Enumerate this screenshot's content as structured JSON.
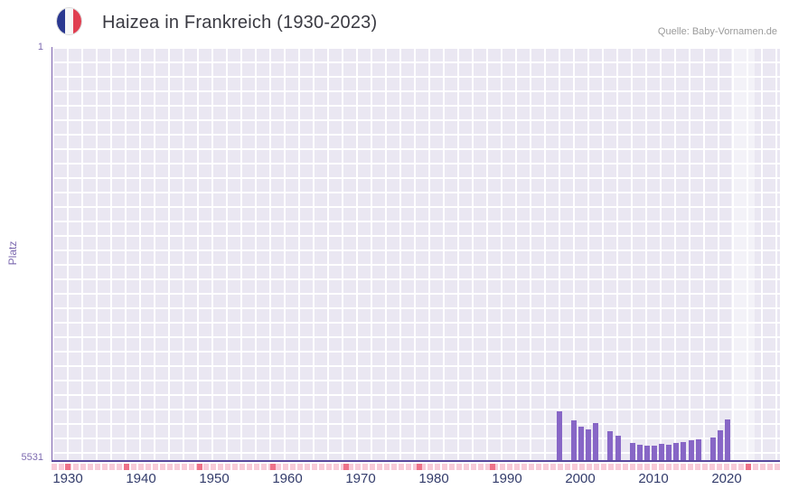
{
  "header": {
    "title": "Haizea in Frankreich (1930-2023)",
    "source": "Quelle: Baby-Vornamen.de",
    "flag_icon": "french-flag-icon"
  },
  "chart_data": {
    "type": "bar",
    "title": "Haizea in Frankreich (1930-2023)",
    "xlabel": "",
    "ylabel": "Platz",
    "x_range": [
      1930,
      2023
    ],
    "x_ticks": [
      1930,
      1940,
      1950,
      1960,
      1970,
      1980,
      1990,
      2000,
      2010,
      2020
    ],
    "y_axis": {
      "min": 1,
      "max": 5531,
      "inverted": true,
      "top_label": "1",
      "bottom_label": "5531"
    },
    "grid": true,
    "legend": "none",
    "highlight_band": {
      "from": 2021,
      "to": 2023
    },
    "bars": [
      {
        "year": 1997,
        "rank": 4870
      },
      {
        "year": 1999,
        "rank": 4990
      },
      {
        "year": 2000,
        "rank": 5070
      },
      {
        "year": 2001,
        "rank": 5110
      },
      {
        "year": 2002,
        "rank": 5020
      },
      {
        "year": 2004,
        "rank": 5130
      },
      {
        "year": 2005,
        "rank": 5190
      },
      {
        "year": 2007,
        "rank": 5290
      },
      {
        "year": 2008,
        "rank": 5310
      },
      {
        "year": 2009,
        "rank": 5330
      },
      {
        "year": 2010,
        "rank": 5320
      },
      {
        "year": 2011,
        "rank": 5300
      },
      {
        "year": 2012,
        "rank": 5310
      },
      {
        "year": 2013,
        "rank": 5290
      },
      {
        "year": 2014,
        "rank": 5280
      },
      {
        "year": 2015,
        "rank": 5250
      },
      {
        "year": 2016,
        "rank": 5240
      },
      {
        "year": 2018,
        "rank": 5220
      },
      {
        "year": 2019,
        "rank": 5120
      },
      {
        "year": 2020,
        "rank": 4980
      }
    ],
    "unranked_strip": {
      "covers_all_years": true,
      "dark_years": [
        1930,
        1938,
        1948,
        1958,
        1968,
        1978,
        1988,
        2023
      ]
    },
    "colors": {
      "bar": "#8766c6",
      "plot_bg": "#eae7f2",
      "grid_line": "#ffffff",
      "strip": "#f8cbd8",
      "strip_dark": "#ee7188",
      "axis_line": "#5b4a9e",
      "x_tick_label": "#333c6b",
      "y_tick_label": "#7d6ab0",
      "title": "#3a3a42",
      "source": "#9a9a9a",
      "flag_blue": "#2a3890",
      "flag_white": "#f7f7f7",
      "flag_red": "#e03e50"
    }
  }
}
